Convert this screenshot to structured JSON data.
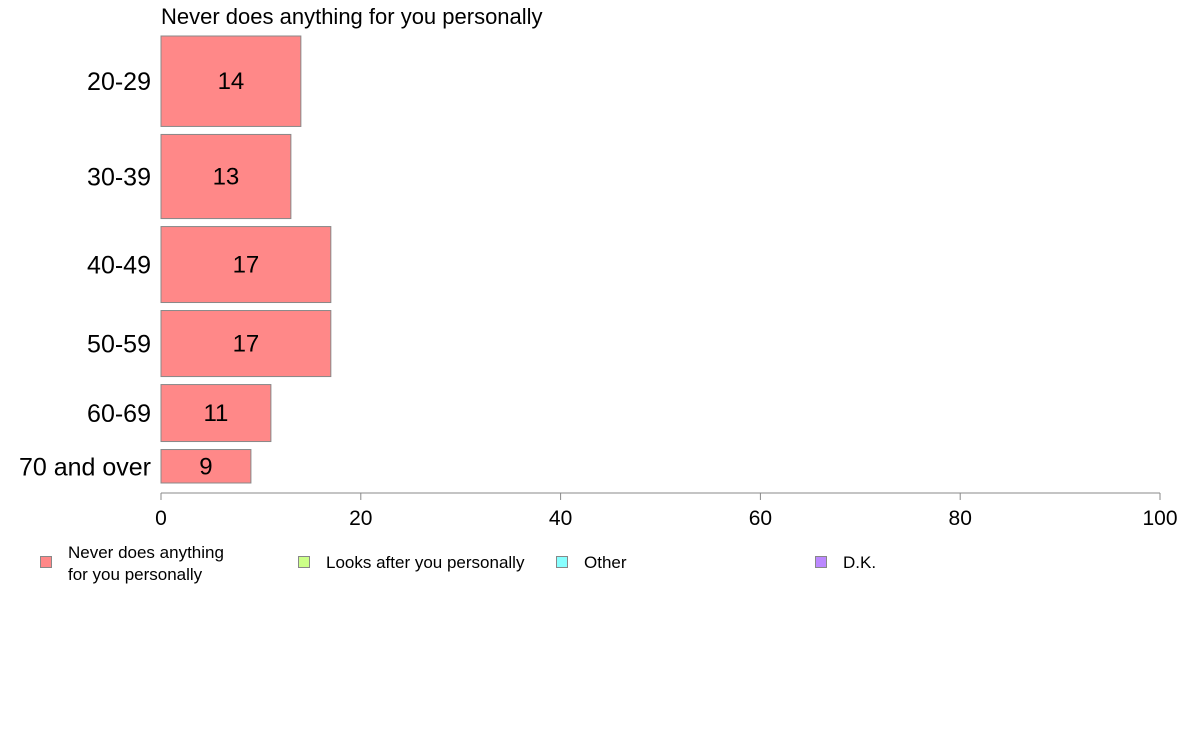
{
  "chart_data": {
    "type": "bar",
    "orientation": "horizontal",
    "title": "Never does anything for you personally",
    "categories": [
      "20-29",
      "30-39",
      "40-49",
      "50-59",
      "60-69",
      "70 and over"
    ],
    "series": [
      {
        "name": "Never does anything for you personally",
        "values": [
          14,
          13,
          17,
          17,
          11,
          9
        ]
      }
    ],
    "data_labels": [
      "14",
      "13",
      "17",
      "17",
      "11",
      "9"
    ],
    "relative_bar_thickness": [
      1.0,
      0.93,
      0.84,
      0.73,
      0.63,
      0.37
    ],
    "xlim": [
      0,
      100
    ],
    "xticks": [
      0,
      20,
      40,
      60,
      80,
      100
    ],
    "xtick_labels": [
      "0",
      "20",
      "40",
      "60",
      "80",
      "100"
    ],
    "grid": false,
    "legend_position": "bottom",
    "bar_color": "#FF8888"
  },
  "legend": {
    "items": [
      {
        "label": "Never does anything\nfor you personally",
        "color": "#FF8888"
      },
      {
        "label": "Looks after you personally",
        "color": "#CCFF88"
      },
      {
        "label": "Other",
        "color": "#88FFFF"
      },
      {
        "label": "D.K.",
        "color": "#BB88FF"
      }
    ]
  }
}
